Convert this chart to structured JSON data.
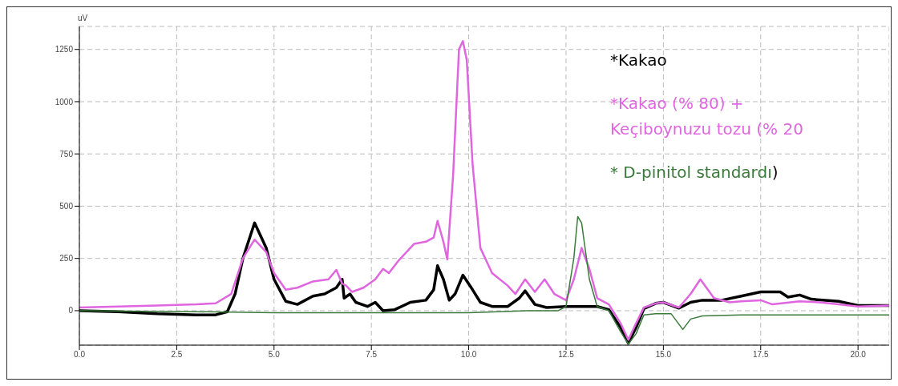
{
  "chart_data": {
    "type": "line",
    "ylabel": "uV",
    "xlim": [
      0,
      20.8
    ],
    "ylim": [
      -165,
      1360
    ],
    "xticks": [
      {
        "value": 0,
        "label": "0.0"
      },
      2.5,
      {
        "value": 5,
        "label": "5.0"
      },
      7.5,
      {
        "value": 10,
        "label": "10.0"
      },
      12.5,
      {
        "value": 15,
        "label": "15.0"
      },
      17.5,
      {
        "value": 20,
        "label": "20.0"
      }
    ],
    "yticks": [
      0,
      250,
      500,
      750,
      1000,
      1250
    ],
    "grid": true,
    "legend": "top right",
    "marker": "none",
    "line_style": "solid",
    "annotations": [
      ")"
    ],
    "series": [
      {
        "name": "*Kakao",
        "color": "#000000",
        "x": [
          0,
          1,
          2,
          3,
          3.5,
          3.8,
          4,
          4.2,
          4.5,
          4.8,
          5,
          5.3,
          5.6,
          6,
          6.3,
          6.6,
          6.75,
          6.8,
          6.95,
          7.1,
          7.4,
          7.6,
          7.8,
          8.1,
          8.5,
          8.9,
          9.1,
          9.2,
          9.35,
          9.5,
          9.65,
          9.85,
          10.1,
          10.3,
          10.6,
          11,
          11.3,
          11.45,
          11.7,
          12,
          12.5,
          13,
          13.3,
          13.6,
          13.9,
          14.1,
          14.3,
          14.5,
          14.8,
          15,
          15.4,
          15.7,
          16,
          16.5,
          17,
          17.5,
          18,
          18.2,
          18.5,
          18.8,
          19.5,
          20,
          20.8
        ],
        "values": [
          0,
          -5,
          -15,
          -20,
          -20,
          -5,
          80,
          250,
          420,
          300,
          150,
          45,
          30,
          70,
          80,
          110,
          150,
          60,
          80,
          40,
          20,
          40,
          0,
          5,
          40,
          50,
          100,
          215,
          150,
          50,
          80,
          170,
          100,
          40,
          20,
          20,
          60,
          95,
          30,
          15,
          20,
          20,
          20,
          5,
          -80,
          -155,
          -80,
          10,
          35,
          40,
          12,
          40,
          50,
          50,
          70,
          90,
          90,
          65,
          75,
          55,
          45,
          25,
          25
        ]
      },
      {
        "name": "*Kakao (% 80) + Keçiboynuzu tozu (% 20",
        "color": "#e066e0",
        "x": [
          0,
          1,
          2,
          3,
          3.5,
          3.9,
          4.2,
          4.5,
          4.8,
          5,
          5.3,
          5.6,
          6,
          6.4,
          6.6,
          6.75,
          6.85,
          7,
          7.3,
          7.6,
          7.8,
          7.95,
          8.2,
          8.6,
          8.9,
          9.1,
          9.2,
          9.35,
          9.45,
          9.6,
          9.75,
          9.85,
          9.95,
          10.1,
          10.3,
          10.6,
          11,
          11.2,
          11.45,
          11.7,
          11.95,
          12.2,
          12.5,
          12.7,
          12.9,
          13.1,
          13.3,
          13.6,
          13.9,
          14.1,
          14.3,
          14.5,
          14.8,
          15,
          15.4,
          15.7,
          15.95,
          16.3,
          16.7,
          17,
          17.5,
          17.8,
          18.5,
          19,
          19.5,
          20,
          20.8
        ],
        "values": [
          15,
          20,
          25,
          30,
          35,
          80,
          250,
          340,
          280,
          180,
          100,
          110,
          140,
          150,
          195,
          130,
          120,
          90,
          110,
          150,
          200,
          180,
          240,
          320,
          330,
          350,
          430,
          330,
          245,
          650,
          1250,
          1290,
          1200,
          700,
          300,
          180,
          120,
          80,
          150,
          90,
          150,
          80,
          50,
          150,
          300,
          200,
          60,
          30,
          -60,
          -140,
          -60,
          15,
          35,
          40,
          15,
          80,
          150,
          60,
          40,
          45,
          50,
          30,
          45,
          40,
          30,
          20,
          25
        ]
      },
      {
        "name": "* D-pinitol standardı",
        "color": "#3a7a3a",
        "x": [
          0,
          3,
          5,
          8,
          10,
          11.5,
          12.3,
          12.5,
          12.7,
          12.8,
          12.9,
          13.1,
          13.3,
          13.6,
          13.9,
          14.1,
          14.3,
          14.5,
          14.8,
          15.2,
          15.5,
          15.7,
          16,
          17,
          18,
          20.8
        ],
        "values": [
          0,
          -5,
          -10,
          -10,
          -10,
          0,
          0,
          20,
          250,
          450,
          420,
          150,
          20,
          0,
          -100,
          -160,
          -110,
          -20,
          -15,
          -15,
          -90,
          -40,
          -25,
          -20,
          -20,
          -20
        ]
      }
    ]
  }
}
